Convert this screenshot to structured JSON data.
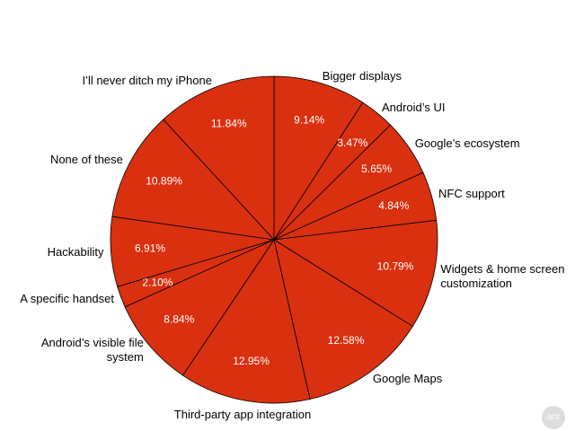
{
  "chart_data": {
    "type": "pie",
    "categories": [
      "Bigger displays",
      "Android’s UI",
      "Google’s ecosystem",
      "NFC support",
      "Widgets & home screen customization",
      "Google Maps",
      "Third-party app integration",
      "Android’s visible file system",
      "A specific handset",
      "Hackability",
      "None of these",
      "I’ll never ditch my iPhone"
    ],
    "values": [
      9.14,
      3.47,
      5.65,
      4.84,
      10.79,
      12.58,
      12.95,
      8.84,
      2.1,
      6.91,
      10.89,
      11.84
    ],
    "value_labels": [
      "9.14%",
      "3.47%",
      "5.65%",
      "4.84%",
      "10.79%",
      "12.58%",
      "12.95%",
      "8.84%",
      "2.10%",
      "6.91%",
      "10.89%",
      "11.84%"
    ],
    "color": "#d9300f",
    "logo": "ars"
  }
}
